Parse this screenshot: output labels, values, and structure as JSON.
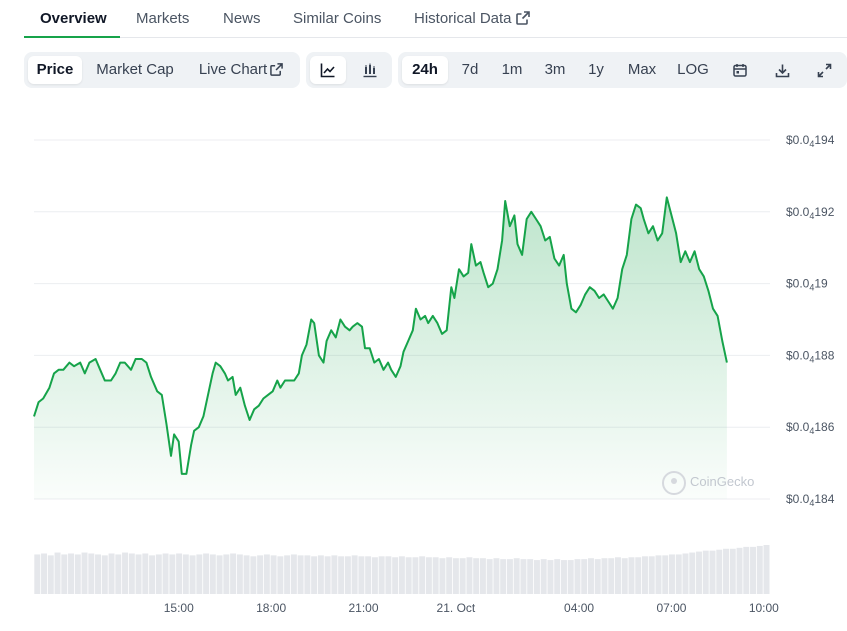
{
  "tabs": {
    "overview": "Overview",
    "markets": "Markets",
    "news": "News",
    "similar": "Similar Coins",
    "historical": "Historical Data"
  },
  "toolbar": {
    "price": "Price",
    "market_cap": "Market Cap",
    "live_chart": "Live Chart",
    "ranges": [
      "24h",
      "7d",
      "1m",
      "3m",
      "1y",
      "Max"
    ],
    "active_range": "24h",
    "log": "LOG",
    "icons": [
      "line-chart-icon",
      "candlestick-icon",
      "calendar-icon",
      "download-icon",
      "fullscreen-icon"
    ]
  },
  "watermark": "CoinGecko",
  "colors": {
    "line": "#16a34a",
    "fill_top": "#16a34a",
    "volume": "#e5e7eb",
    "accent": "#16a34a"
  },
  "chart_data": {
    "type": "area",
    "title": "",
    "xlabel": "",
    "ylabel": "",
    "y_ticks": [
      {
        "prefix": "$0.0",
        "sub": "4",
        "suffix": "194",
        "value": 194
      },
      {
        "prefix": "$0.0",
        "sub": "4",
        "suffix": "192",
        "value": 192
      },
      {
        "prefix": "$0.0",
        "sub": "4",
        "suffix": "19",
        "value": 190
      },
      {
        "prefix": "$0.0",
        "sub": "4",
        "suffix": "188",
        "value": 188
      },
      {
        "prefix": "$0.0",
        "sub": "4",
        "suffix": "186",
        "value": 186
      },
      {
        "prefix": "$0.0",
        "sub": "4",
        "suffix": "184",
        "value": 184
      }
    ],
    "y_unit_note": "price in $0.0000 units (4 zeros after decimal), values ×1e-7",
    "ylim": [
      184,
      194
    ],
    "x_ticks": [
      {
        "label": "15:00",
        "t": 15
      },
      {
        "label": "18:00",
        "t": 18
      },
      {
        "label": "21:00",
        "t": 21
      },
      {
        "label": "21. Oct",
        "t": 24
      },
      {
        "label": "04:00",
        "t": 28
      },
      {
        "label": "07:00",
        "t": 31
      },
      {
        "label": "10:00",
        "t": 34
      }
    ],
    "xlim": [
      10.3,
      34.2
    ],
    "grid": true,
    "series": [
      {
        "values": [
          [
            10.3,
            186.3
          ],
          [
            10.45,
            186.7
          ],
          [
            10.6,
            186.8
          ],
          [
            10.8,
            187.1
          ],
          [
            10.95,
            187.5
          ],
          [
            11.1,
            187.6
          ],
          [
            11.25,
            187.6
          ],
          [
            11.45,
            187.8
          ],
          [
            11.6,
            187.7
          ],
          [
            11.8,
            187.8
          ],
          [
            11.95,
            187.5
          ],
          [
            12.1,
            187.8
          ],
          [
            12.3,
            187.9
          ],
          [
            12.45,
            187.6
          ],
          [
            12.6,
            187.3
          ],
          [
            12.8,
            187.3
          ],
          [
            12.95,
            187.5
          ],
          [
            13.1,
            187.8
          ],
          [
            13.25,
            187.8
          ],
          [
            13.45,
            187.6
          ],
          [
            13.6,
            187.9
          ],
          [
            13.8,
            187.9
          ],
          [
            13.95,
            187.8
          ],
          [
            14.1,
            187.4
          ],
          [
            14.3,
            187.0
          ],
          [
            14.45,
            186.9
          ],
          [
            14.6,
            186.1
          ],
          [
            14.75,
            185.2
          ],
          [
            14.85,
            185.8
          ],
          [
            15.0,
            185.6
          ],
          [
            15.1,
            184.7
          ],
          [
            15.25,
            184.7
          ],
          [
            15.4,
            185.5
          ],
          [
            15.5,
            185.9
          ],
          [
            15.65,
            186.0
          ],
          [
            15.8,
            186.3
          ],
          [
            15.95,
            186.9
          ],
          [
            16.1,
            187.5
          ],
          [
            16.2,
            187.8
          ],
          [
            16.35,
            187.7
          ],
          [
            16.5,
            187.5
          ],
          [
            16.6,
            187.3
          ],
          [
            16.75,
            187.4
          ],
          [
            16.85,
            186.9
          ],
          [
            17.0,
            187.1
          ],
          [
            17.15,
            186.6
          ],
          [
            17.3,
            186.2
          ],
          [
            17.45,
            186.5
          ],
          [
            17.6,
            186.6
          ],
          [
            17.75,
            186.8
          ],
          [
            17.9,
            186.9
          ],
          [
            18.05,
            187.0
          ],
          [
            18.2,
            187.3
          ],
          [
            18.3,
            187.1
          ],
          [
            18.45,
            187.3
          ],
          [
            18.6,
            187.3
          ],
          [
            18.75,
            187.3
          ],
          [
            18.9,
            187.5
          ],
          [
            19.0,
            188.0
          ],
          [
            19.15,
            188.3
          ],
          [
            19.3,
            189.0
          ],
          [
            19.4,
            188.9
          ],
          [
            19.55,
            188.0
          ],
          [
            19.7,
            187.8
          ],
          [
            19.8,
            188.4
          ],
          [
            19.95,
            188.7
          ],
          [
            20.1,
            188.5
          ],
          [
            20.25,
            189.0
          ],
          [
            20.4,
            188.8
          ],
          [
            20.55,
            188.7
          ],
          [
            20.65,
            188.8
          ],
          [
            20.8,
            188.9
          ],
          [
            20.95,
            188.8
          ],
          [
            21.05,
            188.2
          ],
          [
            21.2,
            188.2
          ],
          [
            21.35,
            187.8
          ],
          [
            21.5,
            187.9
          ],
          [
            21.65,
            187.6
          ],
          [
            21.8,
            187.8
          ],
          [
            21.9,
            187.6
          ],
          [
            22.05,
            187.4
          ],
          [
            22.2,
            187.7
          ],
          [
            22.3,
            188.1
          ],
          [
            22.45,
            188.4
          ],
          [
            22.6,
            188.7
          ],
          [
            22.7,
            189.3
          ],
          [
            22.85,
            189.0
          ],
          [
            23.0,
            189.1
          ],
          [
            23.1,
            188.9
          ],
          [
            23.25,
            189.1
          ],
          [
            23.4,
            188.9
          ],
          [
            23.55,
            188.6
          ],
          [
            23.7,
            188.7
          ],
          [
            23.85,
            189.9
          ],
          [
            23.95,
            189.6
          ],
          [
            24.1,
            190.4
          ],
          [
            24.25,
            190.2
          ],
          [
            24.4,
            190.3
          ],
          [
            24.5,
            191.1
          ],
          [
            24.65,
            190.5
          ],
          [
            24.8,
            190.6
          ],
          [
            24.9,
            190.3
          ],
          [
            25.05,
            189.9
          ],
          [
            25.2,
            190.0
          ],
          [
            25.35,
            190.4
          ],
          [
            25.5,
            191.2
          ],
          [
            25.6,
            192.3
          ],
          [
            25.75,
            191.6
          ],
          [
            25.9,
            191.9
          ],
          [
            26.0,
            191.1
          ],
          [
            26.15,
            190.8
          ],
          [
            26.3,
            191.8
          ],
          [
            26.45,
            192.0
          ],
          [
            26.6,
            191.8
          ],
          [
            26.75,
            191.6
          ],
          [
            26.9,
            191.2
          ],
          [
            27.05,
            191.3
          ],
          [
            27.2,
            190.7
          ],
          [
            27.35,
            190.5
          ],
          [
            27.5,
            190.8
          ],
          [
            27.6,
            190.0
          ],
          [
            27.75,
            189.3
          ],
          [
            27.9,
            189.2
          ],
          [
            28.05,
            189.4
          ],
          [
            28.2,
            189.7
          ],
          [
            28.35,
            189.9
          ],
          [
            28.5,
            189.8
          ],
          [
            28.65,
            189.6
          ],
          [
            28.8,
            189.7
          ],
          [
            28.95,
            189.5
          ],
          [
            29.1,
            189.3
          ],
          [
            29.25,
            189.6
          ],
          [
            29.4,
            190.4
          ],
          [
            29.55,
            190.8
          ],
          [
            29.7,
            191.8
          ],
          [
            29.85,
            192.2
          ],
          [
            30.0,
            192.1
          ],
          [
            30.1,
            191.8
          ],
          [
            30.25,
            191.4
          ],
          [
            30.4,
            191.6
          ],
          [
            30.55,
            191.2
          ],
          [
            30.7,
            191.4
          ],
          [
            30.85,
            192.4
          ],
          [
            31.0,
            191.9
          ],
          [
            31.15,
            191.4
          ],
          [
            31.3,
            190.6
          ],
          [
            31.45,
            190.9
          ],
          [
            31.6,
            190.6
          ],
          [
            31.75,
            190.9
          ],
          [
            31.9,
            190.4
          ],
          [
            32.05,
            190.2
          ],
          [
            32.2,
            189.8
          ],
          [
            32.35,
            189.3
          ],
          [
            32.5,
            189.1
          ],
          [
            32.65,
            188.4
          ],
          [
            32.8,
            187.8
          ]
        ]
      }
    ],
    "volume": [
      0.42,
      0.43,
      0.41,
      0.44,
      0.42,
      0.43,
      0.42,
      0.44,
      0.43,
      0.42,
      0.41,
      0.43,
      0.42,
      0.44,
      0.43,
      0.42,
      0.43,
      0.41,
      0.42,
      0.43,
      0.42,
      0.43,
      0.42,
      0.41,
      0.42,
      0.43,
      0.42,
      0.41,
      0.42,
      0.43,
      0.42,
      0.41,
      0.4,
      0.41,
      0.42,
      0.41,
      0.4,
      0.41,
      0.42,
      0.41,
      0.41,
      0.4,
      0.41,
      0.4,
      0.41,
      0.4,
      0.4,
      0.41,
      0.4,
      0.4,
      0.39,
      0.4,
      0.4,
      0.39,
      0.4,
      0.39,
      0.39,
      0.4,
      0.39,
      0.39,
      0.38,
      0.39,
      0.38,
      0.38,
      0.39,
      0.38,
      0.38,
      0.37,
      0.38,
      0.37,
      0.37,
      0.38,
      0.37,
      0.37,
      0.36,
      0.37,
      0.36,
      0.37,
      0.36,
      0.36,
      0.37,
      0.37,
      0.38,
      0.37,
      0.38,
      0.38,
      0.39,
      0.38,
      0.39,
      0.39,
      0.4,
      0.4,
      0.41,
      0.41,
      0.42,
      0.42,
      0.43,
      0.44,
      0.45,
      0.46,
      0.46,
      0.47,
      0.48,
      0.48,
      0.49,
      0.5,
      0.5,
      0.51,
      0.52
    ]
  }
}
